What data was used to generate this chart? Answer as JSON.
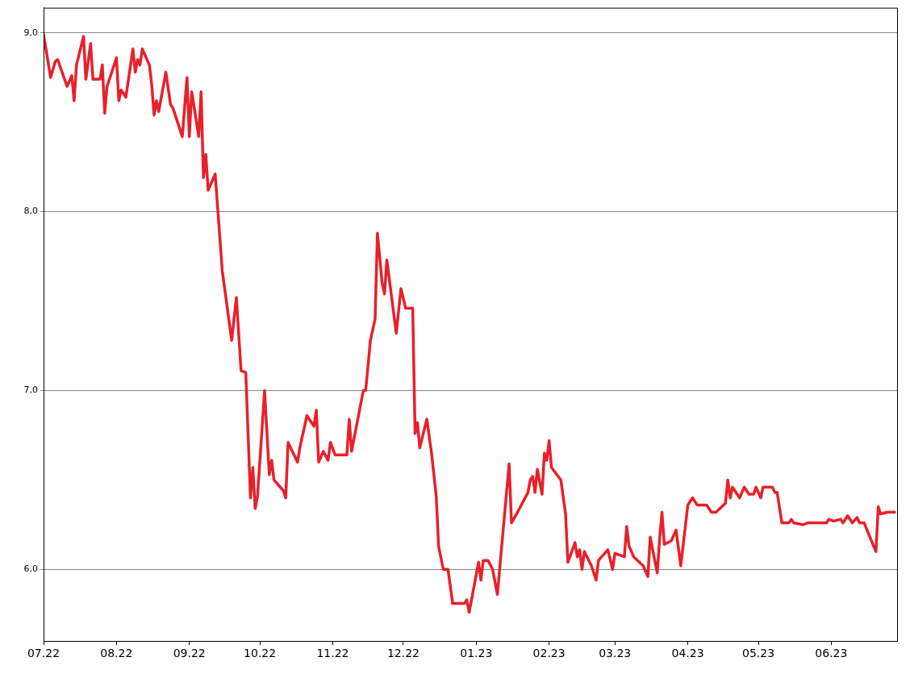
{
  "chart_data": {
    "type": "line",
    "xlim": [
      "2022-07-01",
      "2023-06-29"
    ],
    "xticks": [
      {
        "value": "2022-07-01",
        "label": "07.22"
      },
      {
        "value": "2022-08-01",
        "label": "08.22"
      },
      {
        "value": "2022-09-01",
        "label": "09.22"
      },
      {
        "value": "2022-10-01",
        "label": "10.22"
      },
      {
        "value": "2022-11-01",
        "label": "11.22"
      },
      {
        "value": "2022-12-01",
        "label": "12.22"
      },
      {
        "value": "2023-01-01",
        "label": "01.23"
      },
      {
        "value": "2023-02-01",
        "label": "02.23"
      },
      {
        "value": "2023-03-01",
        "label": "03.23"
      },
      {
        "value": "2023-04-01",
        "label": "04.23"
      },
      {
        "value": "2023-05-01",
        "label": "05.23"
      },
      {
        "value": "2023-06-01",
        "label": "06.23"
      }
    ],
    "ylim": [
      5.6,
      9.14
    ],
    "yticks": [
      {
        "value": 6,
        "label": "6,0"
      },
      {
        "value": 7,
        "label": "7,0"
      },
      {
        "value": 8,
        "label": "8,0"
      },
      {
        "value": 9,
        "label": "9,0"
      }
    ],
    "grid": "y",
    "legend": false,
    "marker": "none",
    "line_style": "solid",
    "x": [
      "2022-07-01",
      "2022-07-04",
      "2022-07-06",
      "2022-07-07",
      "2022-07-11",
      "2022-07-13",
      "2022-07-14",
      "2022-07-15",
      "2022-07-18",
      "2022-07-19",
      "2022-07-21",
      "2022-07-22",
      "2022-07-25",
      "2022-07-26",
      "2022-07-27",
      "2022-07-28",
      "2022-08-01",
      "2022-08-02",
      "2022-08-03",
      "2022-08-05",
      "2022-08-08",
      "2022-08-09",
      "2022-08-10",
      "2022-08-11",
      "2022-08-12",
      "2022-08-15",
      "2022-08-16",
      "2022-08-17",
      "2022-08-18",
      "2022-08-19",
      "2022-08-22",
      "2022-08-24",
      "2022-08-25",
      "2022-08-29",
      "2022-08-31",
      "2022-09-01",
      "2022-09-02",
      "2022-09-05",
      "2022-09-06",
      "2022-09-07",
      "2022-09-08",
      "2022-09-09",
      "2022-09-12",
      "2022-09-15",
      "2022-09-19",
      "2022-09-21",
      "2022-09-23",
      "2022-09-25",
      "2022-09-27",
      "2022-09-28",
      "2022-09-29",
      "2022-09-30",
      "2022-10-03",
      "2022-10-05",
      "2022-10-06",
      "2022-10-07",
      "2022-10-09",
      "2022-10-11",
      "2022-10-12",
      "2022-10-13",
      "2022-10-17",
      "2022-10-18",
      "2022-10-21",
      "2022-10-24",
      "2022-10-25",
      "2022-10-26",
      "2022-10-28",
      "2022-10-30",
      "2022-10-31",
      "2022-11-02",
      "2022-11-07",
      "2022-11-08",
      "2022-11-09",
      "2022-11-14",
      "2022-11-15",
      "2022-11-17",
      "2022-11-19",
      "2022-11-20",
      "2022-11-22",
      "2022-11-23",
      "2022-11-24",
      "2022-11-28",
      "2022-11-30",
      "2022-12-02",
      "2022-12-05",
      "2022-12-06",
      "2022-12-07",
      "2022-12-08",
      "2022-12-11",
      "2022-12-13",
      "2022-12-15",
      "2022-12-16",
      "2022-12-18",
      "2022-12-20",
      "2022-12-22",
      "2022-12-27",
      "2022-12-28",
      "2022-12-29",
      "2023-01-02",
      "2023-01-03",
      "2023-01-04",
      "2023-01-06",
      "2023-01-08",
      "2023-01-10",
      "2023-01-15",
      "2023-01-16",
      "2023-01-19",
      "2023-01-23",
      "2023-01-24",
      "2023-01-25",
      "2023-01-26",
      "2023-01-27",
      "2023-01-29",
      "2023-01-30",
      "2023-01-31",
      "2023-02-01",
      "2023-02-02",
      "2023-02-06",
      "2023-02-08",
      "2023-02-09",
      "2023-02-12",
      "2023-02-13",
      "2023-02-14",
      "2023-02-15",
      "2023-02-16",
      "2023-02-19",
      "2023-02-21",
      "2023-02-22",
      "2023-02-26",
      "2023-02-28",
      "2023-03-01",
      "2023-03-05",
      "2023-03-06",
      "2023-03-07",
      "2023-03-09",
      "2023-03-13",
      "2023-03-15",
      "2023-03-16",
      "2023-03-19",
      "2023-03-20",
      "2023-03-21",
      "2023-03-22",
      "2023-03-25",
      "2023-03-27",
      "2023-03-29",
      "2023-04-01",
      "2023-04-03",
      "2023-04-05",
      "2023-04-09",
      "2023-04-11",
      "2023-04-13",
      "2023-04-17",
      "2023-04-18",
      "2023-04-19",
      "2023-04-20",
      "2023-04-23",
      "2023-04-25",
      "2023-04-27",
      "2023-04-29",
      "2023-04-30",
      "2023-05-02",
      "2023-05-03",
      "2023-05-07",
      "2023-05-08",
      "2023-05-09",
      "2023-05-11",
      "2023-05-14",
      "2023-05-15",
      "2023-05-16",
      "2023-05-20",
      "2023-05-22",
      "2023-05-30",
      "2023-05-31",
      "2023-06-02",
      "2023-06-05",
      "2023-06-06",
      "2023-06-08",
      "2023-06-10",
      "2023-06-12",
      "2023-06-13",
      "2023-06-15",
      "2023-06-19",
      "2023-06-20",
      "2023-06-21",
      "2023-06-22",
      "2023-06-25",
      "2023-06-28"
    ],
    "series": [
      {
        "color": "#e8202a",
        "values": [
          8.99,
          8.75,
          8.84,
          8.85,
          8.7,
          8.76,
          8.62,
          8.82,
          8.98,
          8.74,
          8.94,
          8.74,
          8.74,
          8.82,
          8.55,
          8.7,
          8.86,
          8.62,
          8.68,
          8.64,
          8.91,
          8.78,
          8.85,
          8.82,
          8.91,
          8.82,
          8.71,
          8.54,
          8.62,
          8.56,
          8.78,
          8.6,
          8.58,
          8.42,
          8.75,
          8.42,
          8.67,
          8.42,
          8.67,
          8.19,
          8.32,
          8.12,
          8.21,
          7.67,
          7.28,
          7.52,
          7.11,
          7.1,
          6.4,
          6.57,
          6.34,
          6.41,
          7.0,
          6.53,
          6.61,
          6.5,
          6.47,
          6.44,
          6.4,
          6.71,
          6.6,
          6.68,
          6.86,
          6.8,
          6.89,
          6.6,
          6.66,
          6.61,
          6.71,
          6.64,
          6.64,
          6.84,
          6.66,
          7.0,
          7.0,
          7.28,
          7.4,
          7.88,
          7.6,
          7.54,
          7.73,
          7.32,
          7.57,
          7.46,
          7.46,
          6.76,
          6.82,
          6.68,
          6.84,
          6.65,
          6.41,
          6.13,
          6.0,
          6.0,
          5.81,
          5.81,
          5.83,
          5.76,
          6.04,
          5.94,
          6.05,
          6.05,
          6.0,
          5.86,
          6.59,
          6.26,
          6.33,
          6.43,
          6.5,
          6.52,
          6.43,
          6.56,
          6.42,
          6.65,
          6.61,
          6.72,
          6.57,
          6.5,
          6.31,
          6.04,
          6.15,
          6.07,
          6.11,
          6.0,
          6.1,
          6.02,
          5.94,
          6.05,
          6.11,
          6.0,
          6.09,
          6.07,
          6.24,
          6.13,
          6.07,
          6.02,
          5.96,
          6.18,
          5.98,
          6.17,
          6.32,
          6.14,
          6.16,
          6.22,
          6.02,
          6.36,
          6.4,
          6.36,
          6.36,
          6.32,
          6.32,
          6.37,
          6.5,
          6.4,
          6.46,
          6.4,
          6.46,
          6.42,
          6.42,
          6.46,
          6.4,
          6.46,
          6.46,
          6.43,
          6.43,
          6.26,
          6.26,
          6.28,
          6.26,
          6.25,
          6.26,
          6.26,
          6.28,
          6.27,
          6.28,
          6.26,
          6.3,
          6.26,
          6.29,
          6.26,
          6.26,
          6.13,
          6.1,
          6.35,
          6.31,
          6.32,
          6.32
        ]
      }
    ]
  }
}
